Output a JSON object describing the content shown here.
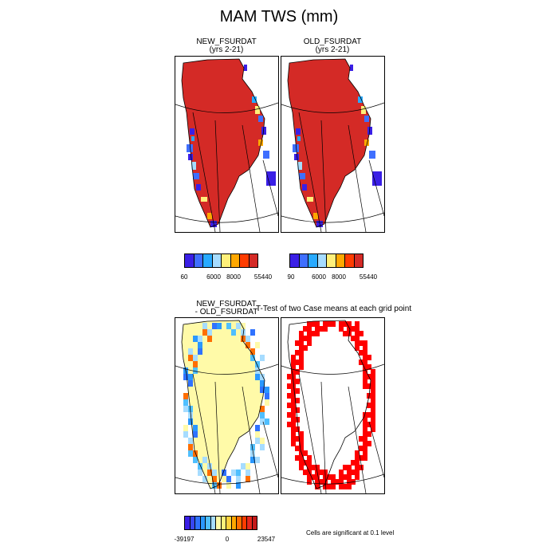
{
  "figure": {
    "title": "MAM TWS (mm)"
  },
  "panels": {
    "new": {
      "line1": "NEW_FSURDAT",
      "line2": "(yrs 2-21)"
    },
    "old": {
      "line1": "OLD_FSURDAT",
      "line2": "(yrs 2-21)"
    },
    "diff": {
      "line1": "NEW_FSURDAT",
      "line2": "- OLD_FSURDAT"
    },
    "ttest": {
      "title": "T-Test of two Case means at each grid point"
    }
  },
  "colorbars": {
    "new": {
      "colors": [
        "#3a1fe6",
        "#3f6fff",
        "#28aaff",
        "#a6dcff",
        "#fff07a",
        "#ffa800",
        "#ff3c00",
        "#d42a26"
      ],
      "tick_labels": [
        "60",
        "6000",
        "8000",
        "55440"
      ]
    },
    "old": {
      "colors": [
        "#3a1fe6",
        "#3f6fff",
        "#28aaff",
        "#a6dcff",
        "#fff07a",
        "#ffa800",
        "#ff3c00",
        "#d42a26"
      ],
      "tick_labels": [
        "90",
        "6000",
        "8000",
        "55440"
      ]
    },
    "diff": {
      "colors": [
        "#3a1fe6",
        "#3847f0",
        "#2f72ff",
        "#2a98ff",
        "#4fbfff",
        "#a6dcff",
        "#fffaa8",
        "#fff07a",
        "#ffd23c",
        "#ffa800",
        "#ff6e00",
        "#ff3c00",
        "#e6281e",
        "#c41a1a"
      ],
      "tick_labels": [
        "-39197",
        "0",
        "23547"
      ]
    }
  },
  "footnote": "Cells are significant at 0.1 level",
  "colors": {
    "land_fill": "#d42a26",
    "diff_fill": "#fffaa8",
    "signif": "#ff0000"
  }
}
